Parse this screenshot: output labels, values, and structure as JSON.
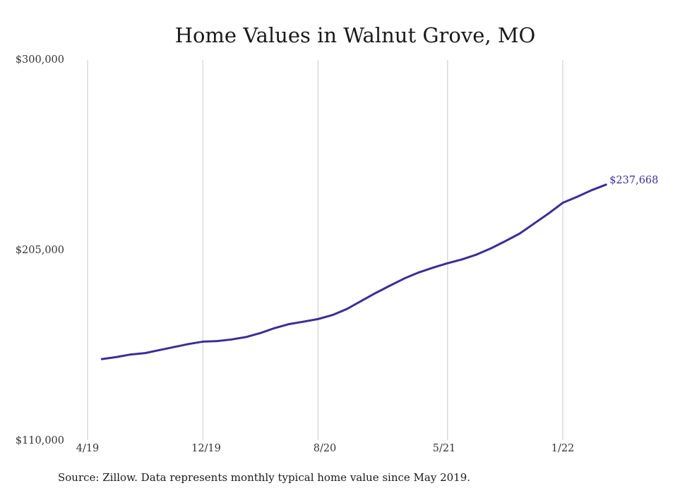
{
  "chart_data": {
    "type": "line",
    "title": "Home Values in Walnut Grove, MO",
    "xlabel": "",
    "ylabel": "",
    "x_tick_labels": [
      "4/19",
      "12/19",
      "8/20",
      "5/21",
      "1/22"
    ],
    "y_tick_labels": [
      "$300,000",
      "$205,000",
      "$110,000"
    ],
    "ylim": [
      110000,
      300000
    ],
    "grid": "vertical lines at x ticks",
    "series": [
      {
        "color": "#3a2f96",
        "x": [
          "2019-05",
          "2019-06",
          "2019-07",
          "2019-08",
          "2019-09",
          "2019-10",
          "2019-11",
          "2019-12",
          "2020-01",
          "2020-02",
          "2020-03",
          "2020-04",
          "2020-05",
          "2020-06",
          "2020-07",
          "2020-08",
          "2020-09",
          "2020-10",
          "2020-11",
          "2020-12",
          "2021-01",
          "2021-02",
          "2021-03",
          "2021-04",
          "2021-05",
          "2021-06",
          "2021-07",
          "2021-08",
          "2021-09",
          "2021-10",
          "2021-11",
          "2021-12",
          "2022-01",
          "2022-02",
          "2022-03",
          "2022-04"
        ],
        "values": [
          150500,
          151500,
          152800,
          153500,
          155000,
          156500,
          158000,
          159200,
          159500,
          160300,
          161500,
          163500,
          166000,
          168000,
          169200,
          170500,
          172500,
          175500,
          179500,
          183500,
          187200,
          190800,
          193800,
          196200,
          198400,
          200300,
          202700,
          205800,
          209400,
          213200,
          218200,
          223200,
          228600,
          231600,
          234900,
          237668
        ]
      }
    ],
    "end_label": "$237,668"
  },
  "footer": {
    "source": "Source: Zillow. Data represents monthly typical home value since May 2019."
  }
}
